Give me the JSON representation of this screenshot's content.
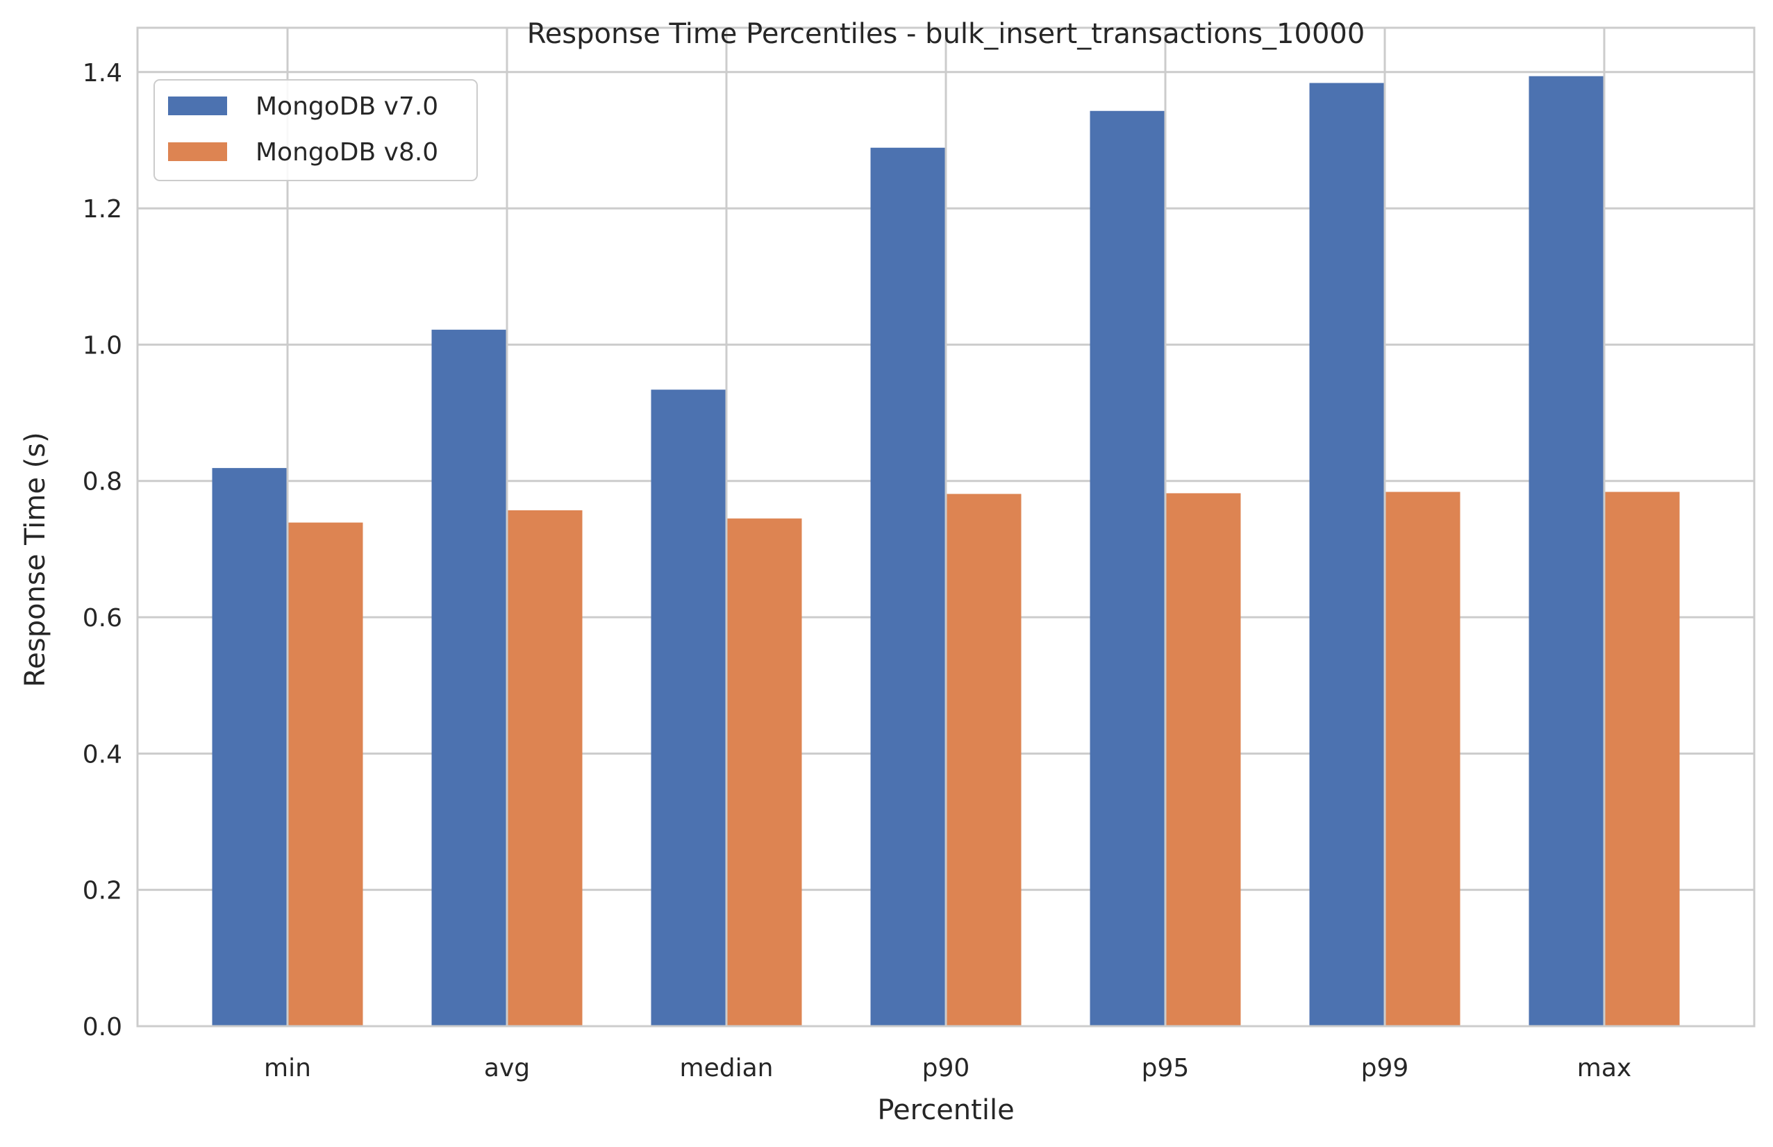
{
  "chart_data": {
    "type": "bar",
    "title": "Response Time Percentiles - bulk_insert_transactions_10000",
    "xlabel": "Percentile",
    "ylabel": "Response Time (s)",
    "categories": [
      "min",
      "avg",
      "median",
      "p90",
      "p95",
      "p99",
      "max"
    ],
    "series": [
      {
        "name": "MongoDB v7.0",
        "color": "#4c72b0",
        "values": [
          0.819,
          1.022,
          0.934,
          1.289,
          1.343,
          1.384,
          1.394
        ]
      },
      {
        "name": "MongoDB v8.0",
        "color": "#dd8452",
        "values": [
          0.739,
          0.757,
          0.745,
          0.781,
          0.782,
          0.784,
          0.784
        ]
      }
    ],
    "ylim": [
      0,
      1.465
    ],
    "yticks": [
      "0.0",
      "0.2",
      "0.4",
      "0.6",
      "0.8",
      "1.0",
      "1.2",
      "1.4"
    ],
    "grid": true,
    "legend_position": "top-left"
  }
}
